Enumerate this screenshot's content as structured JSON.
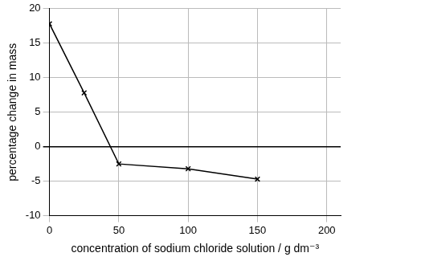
{
  "chart_data": {
    "type": "line",
    "x_label": "concentration of sodium chloride solution / g dm⁻³",
    "y_label": "percentage change in mass",
    "x": [
      0,
      25,
      50,
      100,
      150
    ],
    "values": [
      17.8,
      7.8,
      -2.5,
      -3.2,
      -4.7
    ],
    "color": "#000000",
    "marker": "x",
    "xlim": [
      0,
      210
    ],
    "xticks": [
      0,
      50,
      100,
      150,
      200
    ],
    "ylim": [
      -10,
      20
    ],
    "yticks": [
      -10,
      -5,
      0,
      5,
      10,
      15,
      20
    ],
    "grid": true
  }
}
